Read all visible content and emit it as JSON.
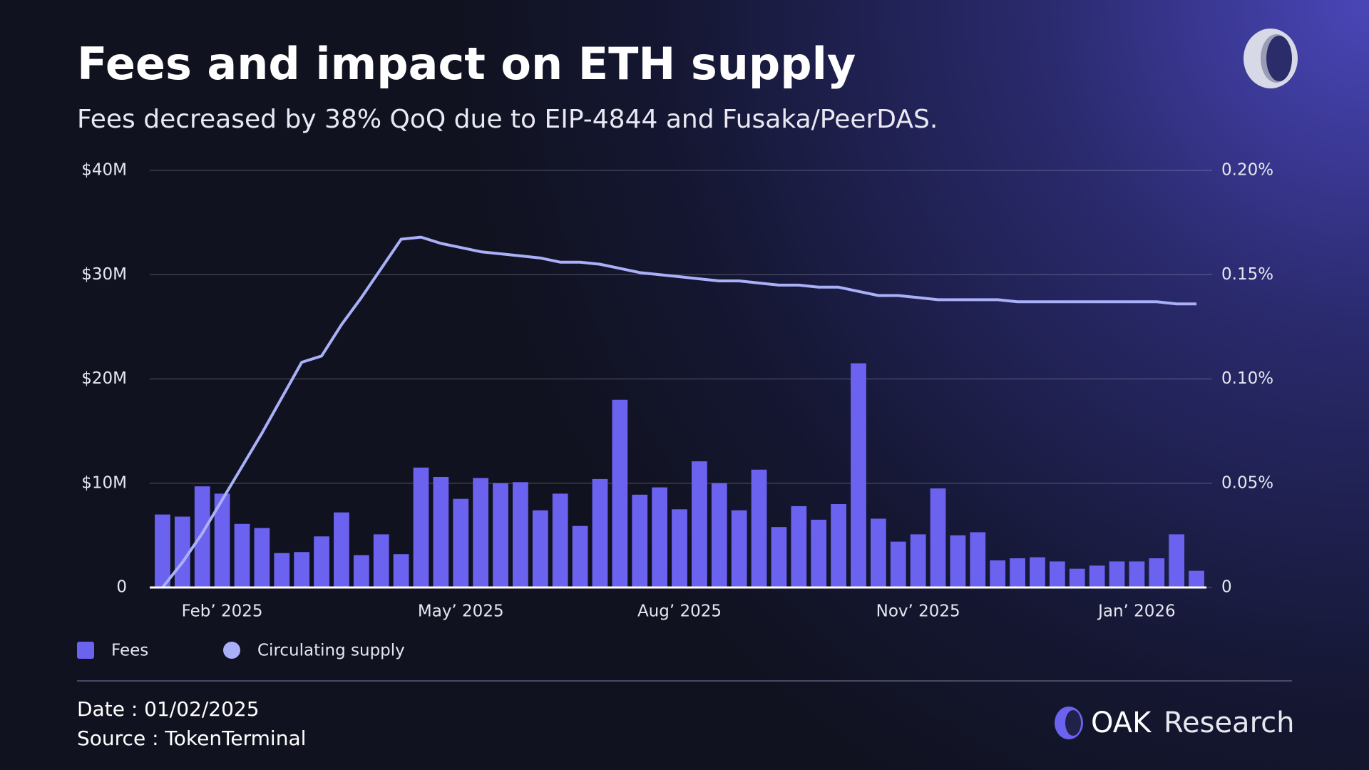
{
  "chart_data": {
    "type": "bar_line",
    "title": "Fees and impact on ETH supply",
    "subtitle": "Fees decreased by 38% QoQ due to EIP-4844 and Fusaka/PeerDAS.",
    "categories": [
      null,
      null,
      null,
      "Feb’ 2025",
      null,
      null,
      null,
      null,
      null,
      null,
      null,
      null,
      null,
      null,
      null,
      "May’ 2025",
      null,
      null,
      null,
      null,
      null,
      null,
      null,
      null,
      null,
      null,
      "Aug’ 2025",
      null,
      null,
      null,
      null,
      null,
      null,
      null,
      null,
      null,
      null,
      null,
      "Nov’ 2025",
      null,
      null,
      null,
      null,
      null,
      null,
      null,
      null,
      null,
      null,
      "Jan’ 2026",
      null,
      null,
      null
    ],
    "series": [
      {
        "name": "Fees",
        "type": "bar",
        "color": "#6b62f0",
        "values": [
          7.0,
          6.8,
          9.7,
          9.0,
          6.1,
          5.7,
          3.3,
          3.4,
          4.9,
          7.2,
          3.1,
          5.1,
          3.2,
          11.5,
          10.6,
          8.5,
          10.5,
          10.0,
          10.1,
          7.4,
          9.0,
          5.9,
          10.4,
          18.0,
          8.9,
          9.6,
          7.5,
          12.1,
          10.0,
          7.4,
          11.3,
          5.8,
          7.8,
          6.5,
          8.0,
          21.5,
          6.6,
          4.4,
          5.1,
          9.5,
          5.0,
          5.3,
          2.6,
          2.8,
          2.9,
          2.5,
          1.8,
          2.1,
          2.5,
          2.5,
          2.8,
          5.1,
          1.6
        ]
      },
      {
        "name": "Circulating supply",
        "type": "line",
        "axis": "y2",
        "color": "#a9b0f7",
        "values": [
          0,
          0.012,
          0.026,
          0.042,
          0.058,
          0.074,
          0.091,
          0.108,
          0.111,
          0.126,
          0.139,
          0.153,
          0.167,
          0.168,
          0.165,
          0.163,
          0.161,
          0.16,
          0.159,
          0.158,
          0.156,
          0.156,
          0.155,
          0.153,
          0.151,
          0.15,
          0.149,
          0.148,
          0.147,
          0.147,
          0.146,
          0.145,
          0.145,
          0.144,
          0.144,
          0.142,
          0.14,
          0.14,
          0.139,
          0.138,
          0.138,
          0.138,
          0.138,
          0.137,
          0.137,
          0.137,
          0.137,
          0.137,
          0.137,
          0.137,
          0.137,
          0.136,
          0.136
        ]
      }
    ],
    "ylim": [
      0,
      40
    ],
    "yticks": [
      0,
      {
        "value": 10,
        "label": "$10M"
      },
      {
        "value": 20,
        "label": "$20M"
      },
      {
        "value": 30,
        "label": "$30M"
      },
      {
        "value": 40,
        "label": "$40M"
      }
    ],
    "y2lim": [
      0,
      0.2
    ],
    "y2ticks": [
      0,
      {
        "value": 0.05,
        "label": "0.05%"
      },
      {
        "value": 0.1,
        "label": "0.10%"
      },
      {
        "value": 0.15,
        "label": "0.15%"
      },
      {
        "value": 0.2,
        "label": "0.20%"
      }
    ],
    "grid": true,
    "legend": "bottom-left"
  },
  "footer": {
    "date": "Date : 01/02/2025",
    "source": "Source : TokenTerminal"
  },
  "brand": {
    "name": "OAK",
    "suffix": "Research"
  }
}
